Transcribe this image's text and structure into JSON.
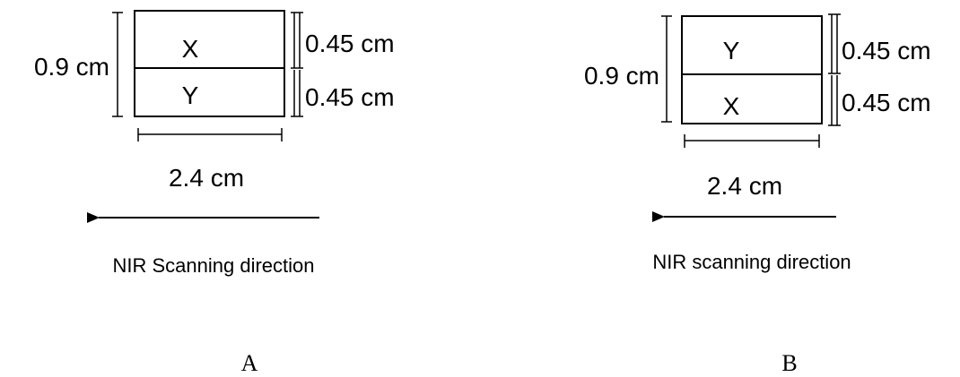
{
  "panels": [
    {
      "caption": "A",
      "cells": [
        "X",
        "Y"
      ],
      "height_label": "0.9 cm",
      "cell_height_labels": [
        "0.45 cm",
        "0.45 cm"
      ],
      "width_label": "2.4 cm",
      "direction_label": "NIR Scanning direction"
    },
    {
      "caption": "B",
      "cells": [
        "Y",
        "X"
      ],
      "height_label": "0.9 cm",
      "cell_height_labels": [
        "0.45 cm",
        "0.45 cm"
      ],
      "width_label": "2.4 cm",
      "direction_label": "NIR scanning direction"
    }
  ]
}
